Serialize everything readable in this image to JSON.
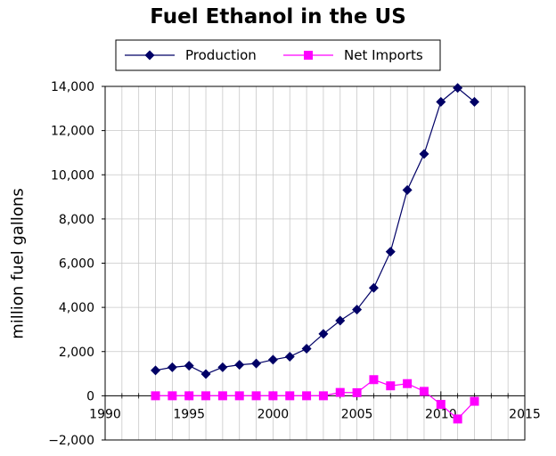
{
  "chart_data": {
    "type": "line",
    "title": "Fuel Ethanol in the US",
    "xlabel": "",
    "ylabel": "million fuel gallons",
    "xlim": [
      1990,
      2015
    ],
    "ylim": [
      -2000,
      14000
    ],
    "x_ticks": [
      "1990",
      "1995",
      "2000",
      "2005",
      "2010",
      "2015"
    ],
    "y_ticks": [
      "−2,000",
      "0",
      "2,000",
      "4,000",
      "6,000",
      "8,000",
      "10,000",
      "12,000",
      "14,000"
    ],
    "grid": true,
    "legend_position": "top",
    "x": [
      1993,
      1994,
      1995,
      1996,
      1997,
      1998,
      1999,
      2000,
      2001,
      2002,
      2003,
      2004,
      2005,
      2006,
      2007,
      2008,
      2009,
      2010,
      2011,
      2012
    ],
    "series": [
      {
        "name": "Production",
        "color": "#000066",
        "marker": "diamond",
        "values": [
          1150,
          1290,
          1360,
          980,
          1290,
          1400,
          1460,
          1630,
          1770,
          2130,
          2800,
          3400,
          3900,
          4880,
          6520,
          9310,
          10940,
          13300,
          13930,
          13300
        ]
      },
      {
        "name": "Net Imports",
        "color": "#ff00ff",
        "marker": "square",
        "values": [
          0,
          0,
          0,
          0,
          0,
          0,
          0,
          0,
          0,
          0,
          0,
          150,
          140,
          730,
          450,
          550,
          200,
          -390,
          -1050,
          -250
        ]
      }
    ]
  }
}
